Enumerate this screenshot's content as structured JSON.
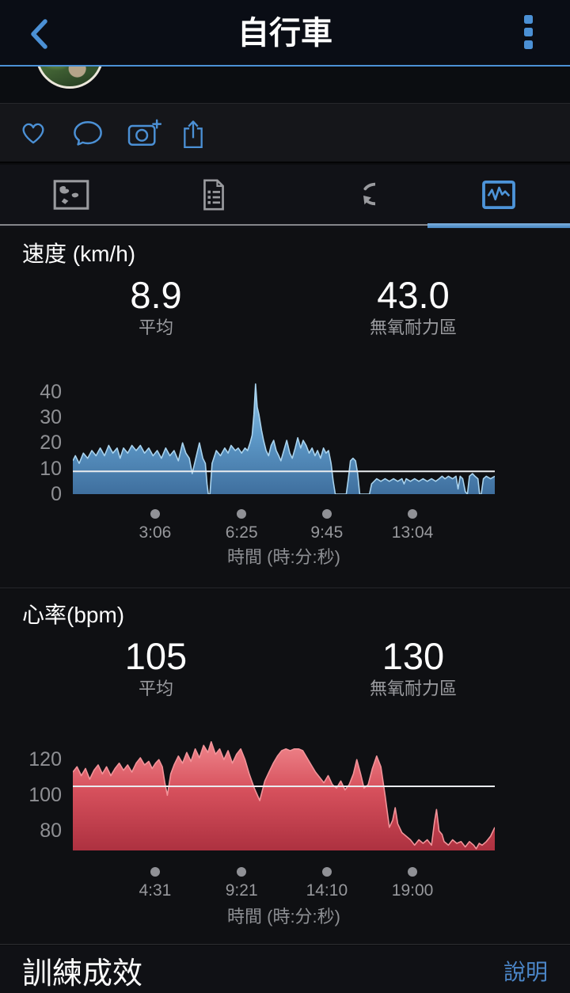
{
  "header": {
    "title": "自行車",
    "back_icon": "chevron-left",
    "menu_icon": "kebab-menu"
  },
  "avatar": {
    "description": "user-photo-avatar"
  },
  "action_bar": {
    "icons": [
      {
        "name": "like-heart"
      },
      {
        "name": "comment-bubble"
      },
      {
        "name": "camera-add"
      },
      {
        "name": "share"
      }
    ]
  },
  "tabs": [
    {
      "name": "map",
      "selected": false
    },
    {
      "name": "details-list",
      "selected": false
    },
    {
      "name": "laps",
      "selected": false
    },
    {
      "name": "charts",
      "selected": true
    }
  ],
  "colors": {
    "accent_blue": "#4b90d5",
    "speed_fill_stops": [
      "#93c4e6",
      "#5f9bca",
      "#3f6f9e"
    ],
    "speed_stroke": "#a9d3ee",
    "hr_fill_stops": [
      "#ef858b",
      "#d6505c",
      "#ad3140"
    ],
    "hr_stroke": "#f29399",
    "avg_line": "#e9ecef",
    "tick_dot": "#909196"
  },
  "chart_data": [
    {
      "type": "area",
      "title": "速度 (km/h)",
      "stats": [
        {
          "value": "8.9",
          "label": "平均"
        },
        {
          "value": "43.0",
          "label": "無氧耐力區"
        }
      ],
      "average": 8.9,
      "max": 43.0,
      "yticks": [
        40,
        30,
        20,
        10,
        0
      ],
      "ylim": [
        0,
        46
      ],
      "xticks": [
        "3:06",
        "6:25",
        "9:45",
        "13:04"
      ],
      "xlabel": "時間 (時:分:秒)",
      "legend": "none",
      "grid": "off",
      "points": [
        [
          0,
          13
        ],
        [
          0.006,
          15
        ],
        [
          0.015,
          12
        ],
        [
          0.025,
          16
        ],
        [
          0.035,
          14
        ],
        [
          0.045,
          17
        ],
        [
          0.055,
          15
        ],
        [
          0.065,
          18
        ],
        [
          0.075,
          15
        ],
        [
          0.085,
          19
        ],
        [
          0.095,
          16
        ],
        [
          0.105,
          18
        ],
        [
          0.112,
          14
        ],
        [
          0.12,
          18
        ],
        [
          0.13,
          16
        ],
        [
          0.14,
          19
        ],
        [
          0.15,
          17
        ],
        [
          0.16,
          19
        ],
        [
          0.17,
          16
        ],
        [
          0.18,
          18
        ],
        [
          0.19,
          15
        ],
        [
          0.2,
          17
        ],
        [
          0.21,
          14
        ],
        [
          0.22,
          18
        ],
        [
          0.23,
          15
        ],
        [
          0.24,
          17
        ],
        [
          0.25,
          13
        ],
        [
          0.26,
          20
        ],
        [
          0.268,
          16
        ],
        [
          0.276,
          14
        ],
        [
          0.283,
          8
        ],
        [
          0.29,
          13
        ],
        [
          0.3,
          20
        ],
        [
          0.308,
          14
        ],
        [
          0.314,
          12
        ],
        [
          0.318,
          4
        ],
        [
          0.321,
          0
        ],
        [
          0.325,
          0
        ],
        [
          0.33,
          12
        ],
        [
          0.34,
          17
        ],
        [
          0.35,
          15
        ],
        [
          0.36,
          18
        ],
        [
          0.368,
          16
        ],
        [
          0.375,
          19
        ],
        [
          0.385,
          17
        ],
        [
          0.392,
          18
        ],
        [
          0.4,
          16
        ],
        [
          0.408,
          18
        ],
        [
          0.414,
          17
        ],
        [
          0.42,
          20
        ],
        [
          0.425,
          23
        ],
        [
          0.429,
          31
        ],
        [
          0.433,
          43
        ],
        [
          0.437,
          34
        ],
        [
          0.441,
          31
        ],
        [
          0.447,
          25
        ],
        [
          0.452,
          21
        ],
        [
          0.458,
          17
        ],
        [
          0.464,
          15
        ],
        [
          0.47,
          19
        ],
        [
          0.476,
          21
        ],
        [
          0.482,
          17
        ],
        [
          0.488,
          15
        ],
        [
          0.493,
          13
        ],
        [
          0.5,
          17
        ],
        [
          0.507,
          21
        ],
        [
          0.514,
          16
        ],
        [
          0.52,
          14
        ],
        [
          0.527,
          18
        ],
        [
          0.533,
          22
        ],
        [
          0.54,
          18
        ],
        [
          0.546,
          21
        ],
        [
          0.553,
          19
        ],
        [
          0.56,
          16
        ],
        [
          0.567,
          18
        ],
        [
          0.574,
          15
        ],
        [
          0.58,
          17
        ],
        [
          0.587,
          14
        ],
        [
          0.594,
          18
        ],
        [
          0.6,
          16
        ],
        [
          0.606,
          17
        ],
        [
          0.612,
          12
        ],
        [
          0.617,
          5
        ],
        [
          0.622,
          0
        ],
        [
          0.635,
          0
        ],
        [
          0.648,
          0
        ],
        [
          0.653,
          6
        ],
        [
          0.658,
          13
        ],
        [
          0.664,
          14
        ],
        [
          0.67,
          13
        ],
        [
          0.675,
          8
        ],
        [
          0.68,
          0
        ],
        [
          0.695,
          0
        ],
        [
          0.703,
          0
        ],
        [
          0.708,
          4
        ],
        [
          0.714,
          5
        ],
        [
          0.72,
          6
        ],
        [
          0.73,
          5
        ],
        [
          0.74,
          6
        ],
        [
          0.75,
          5
        ],
        [
          0.76,
          6
        ],
        [
          0.77,
          5
        ],
        [
          0.78,
          6
        ],
        [
          0.785,
          4
        ],
        [
          0.79,
          6
        ],
        [
          0.8,
          5
        ],
        [
          0.81,
          6
        ],
        [
          0.82,
          5
        ],
        [
          0.83,
          6
        ],
        [
          0.84,
          5
        ],
        [
          0.85,
          6
        ],
        [
          0.86,
          5
        ],
        [
          0.868,
          6
        ],
        [
          0.875,
          7
        ],
        [
          0.882,
          6
        ],
        [
          0.89,
          7
        ],
        [
          0.9,
          6
        ],
        [
          0.908,
          7
        ],
        [
          0.913,
          2
        ],
        [
          0.918,
          7
        ],
        [
          0.924,
          6
        ],
        [
          0.93,
          1
        ],
        [
          0.935,
          0
        ],
        [
          0.94,
          7
        ],
        [
          0.947,
          8
        ],
        [
          0.953,
          7
        ],
        [
          0.96,
          6
        ],
        [
          0.964,
          0
        ],
        [
          0.968,
          0
        ],
        [
          0.973,
          6
        ],
        [
          0.98,
          7
        ],
        [
          0.99,
          6
        ],
        [
          1,
          7
        ]
      ]
    },
    {
      "type": "area",
      "title": "心率(bpm)",
      "stats": [
        {
          "value": "105",
          "label": "平均"
        },
        {
          "value": "130",
          "label": "無氧耐力區"
        }
      ],
      "average": 105,
      "max": 130,
      "yticks": [
        120,
        100,
        80
      ],
      "ylim": [
        69,
        132
      ],
      "xticks": [
        "4:31",
        "9:21",
        "14:10",
        "19:00"
      ],
      "xlabel": "時間 (時:分:秒)",
      "legend": "none",
      "grid": "off",
      "points": [
        [
          0,
          113
        ],
        [
          0.01,
          116
        ],
        [
          0.02,
          111
        ],
        [
          0.03,
          115
        ],
        [
          0.04,
          109
        ],
        [
          0.05,
          114
        ],
        [
          0.06,
          117
        ],
        [
          0.07,
          112
        ],
        [
          0.08,
          116
        ],
        [
          0.09,
          111
        ],
        [
          0.1,
          115
        ],
        [
          0.11,
          118
        ],
        [
          0.12,
          114
        ],
        [
          0.13,
          117
        ],
        [
          0.14,
          113
        ],
        [
          0.15,
          118
        ],
        [
          0.16,
          121
        ],
        [
          0.17,
          117
        ],
        [
          0.18,
          119
        ],
        [
          0.188,
          115
        ],
        [
          0.196,
          118
        ],
        [
          0.204,
          120
        ],
        [
          0.212,
          116
        ],
        [
          0.218,
          107
        ],
        [
          0.224,
          100
        ],
        [
          0.232,
          112
        ],
        [
          0.24,
          117
        ],
        [
          0.25,
          122
        ],
        [
          0.26,
          118
        ],
        [
          0.27,
          124
        ],
        [
          0.28,
          119
        ],
        [
          0.29,
          126
        ],
        [
          0.3,
          121
        ],
        [
          0.31,
          128
        ],
        [
          0.32,
          124
        ],
        [
          0.328,
          130
        ],
        [
          0.338,
          123
        ],
        [
          0.348,
          126
        ],
        [
          0.358,
          120
        ],
        [
          0.368,
          125
        ],
        [
          0.378,
          118
        ],
        [
          0.388,
          123
        ],
        [
          0.398,
          126
        ],
        [
          0.408,
          120
        ],
        [
          0.418,
          112
        ],
        [
          0.43,
          104
        ],
        [
          0.443,
          97
        ],
        [
          0.455,
          108
        ],
        [
          0.465,
          113
        ],
        [
          0.475,
          118
        ],
        [
          0.485,
          122
        ],
        [
          0.495,
          125
        ],
        [
          0.505,
          126
        ],
        [
          0.515,
          125
        ],
        [
          0.525,
          126
        ],
        [
          0.535,
          126
        ],
        [
          0.545,
          125
        ],
        [
          0.555,
          121
        ],
        [
          0.565,
          117
        ],
        [
          0.575,
          113
        ],
        [
          0.585,
          110
        ],
        [
          0.595,
          107
        ],
        [
          0.605,
          111
        ],
        [
          0.615,
          106
        ],
        [
          0.625,
          104
        ],
        [
          0.635,
          108
        ],
        [
          0.645,
          103
        ],
        [
          0.655,
          106
        ],
        [
          0.665,
          112
        ],
        [
          0.673,
          120
        ],
        [
          0.682,
          112
        ],
        [
          0.69,
          104
        ],
        [
          0.7,
          106
        ],
        [
          0.71,
          115
        ],
        [
          0.72,
          122
        ],
        [
          0.73,
          116
        ],
        [
          0.74,
          100
        ],
        [
          0.75,
          82
        ],
        [
          0.758,
          86
        ],
        [
          0.764,
          93
        ],
        [
          0.77,
          84
        ],
        [
          0.78,
          79
        ],
        [
          0.79,
          77
        ],
        [
          0.8,
          75
        ],
        [
          0.81,
          72
        ],
        [
          0.82,
          75
        ],
        [
          0.83,
          73
        ],
        [
          0.84,
          75
        ],
        [
          0.85,
          72
        ],
        [
          0.857,
          85
        ],
        [
          0.862,
          92
        ],
        [
          0.868,
          80
        ],
        [
          0.875,
          78
        ],
        [
          0.88,
          74
        ],
        [
          0.89,
          72
        ],
        [
          0.9,
          75
        ],
        [
          0.91,
          73
        ],
        [
          0.92,
          74
        ],
        [
          0.93,
          71
        ],
        [
          0.94,
          74
        ],
        [
          0.95,
          72
        ],
        [
          0.956,
          70
        ],
        [
          0.963,
          73
        ],
        [
          0.97,
          72
        ],
        [
          0.98,
          74
        ],
        [
          0.99,
          77
        ],
        [
          1,
          82
        ]
      ]
    }
  ],
  "footer": {
    "title": "訓練成效",
    "link": "說明"
  }
}
